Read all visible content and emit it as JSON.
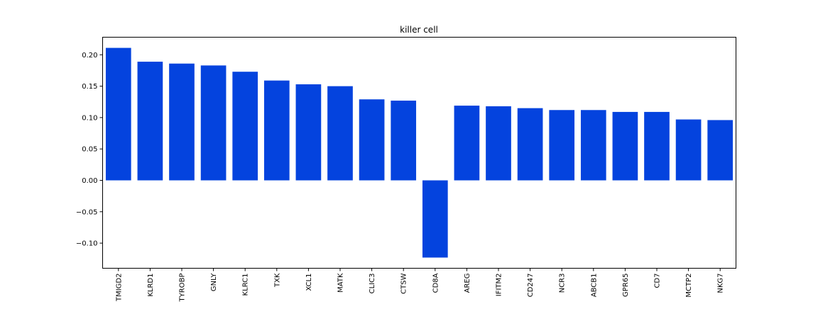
{
  "chart_data": {
    "type": "bar",
    "title": "killer cell",
    "xlabel": "",
    "ylabel": "",
    "categories": [
      "TMIGD2",
      "KLRD1",
      "TYROBP",
      "GNLY",
      "KLRC1",
      "TXK",
      "XCL1",
      "MATK",
      "CLIC3",
      "CTSW",
      "CD8A",
      "AREG",
      "IFITM2",
      "CD247",
      "NCR3",
      "ABCB1",
      "GPR65",
      "CD7",
      "MCTP2",
      "NKG7"
    ],
    "values": [
      0.211,
      0.189,
      0.186,
      0.183,
      0.173,
      0.159,
      0.153,
      0.15,
      0.129,
      0.127,
      -0.123,
      0.119,
      0.118,
      0.115,
      0.112,
      0.112,
      0.109,
      0.109,
      0.097,
      0.096
    ],
    "ylim": [
      -0.14,
      0.228
    ],
    "yticks": [
      -0.1,
      -0.05,
      0.0,
      0.05,
      0.1,
      0.15,
      0.2
    ],
    "ytick_labels": [
      "−0.10",
      "−0.05",
      "0.00",
      "0.05",
      "0.10",
      "0.15",
      "0.20"
    ],
    "bar_color": "#0443DE",
    "grid": false,
    "legend": "none"
  }
}
